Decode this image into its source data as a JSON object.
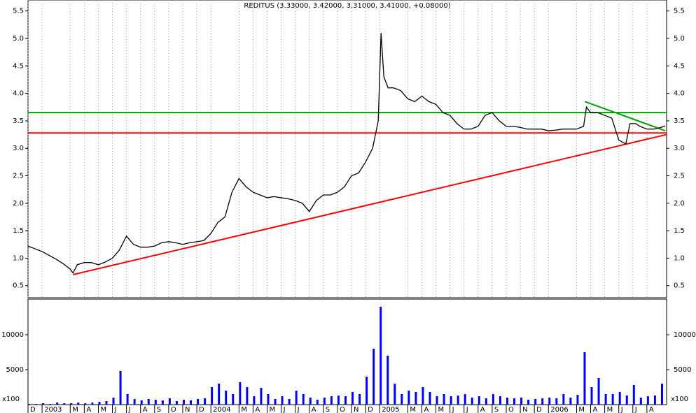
{
  "chart_data": [
    {
      "type": "line",
      "title": "REDITUS (3.33000, 3.42000, 3.31000, 3.41000, +0.08000)",
      "xlim": [
        0,
        45.4
      ],
      "ylim": [
        0.28,
        5.7
      ],
      "yticks": [
        0.5,
        {
          "value": 1,
          "label": "1.0"
        },
        1.5,
        {
          "value": 2,
          "label": "2.0"
        },
        2.5,
        {
          "value": 3,
          "label": "3.0"
        },
        3.5,
        {
          "value": 4,
          "label": "4.0"
        },
        4.5,
        {
          "value": 5,
          "label": "5.0"
        },
        5.5
      ],
      "x": [
        0,
        0.5,
        1,
        1.5,
        2,
        2.5,
        3,
        3.2,
        3.5,
        4,
        4.5,
        5,
        5.5,
        6,
        6.5,
        7,
        7.5,
        8,
        8.5,
        9,
        9.5,
        10,
        10.5,
        11,
        11.5,
        12,
        12.5,
        13,
        13.5,
        14,
        14.5,
        15,
        15.5,
        16,
        16.5,
        17,
        17.5,
        18,
        18.5,
        19,
        19.5,
        20,
        20.5,
        21,
        21.5,
        22,
        22.5,
        23,
        23.5,
        24,
        24.5,
        24.9,
        25.1,
        25.3,
        25.6,
        26,
        26.5,
        27,
        27.5,
        28,
        28.5,
        29,
        29.5,
        30,
        30.5,
        31,
        31.5,
        32,
        32.5,
        33,
        33.5,
        34,
        34.5,
        35,
        35.5,
        36,
        36.5,
        37,
        37.5,
        38,
        38.5,
        39,
        39.5,
        39.7,
        40,
        40.5,
        41,
        41.5,
        42,
        42.5,
        42.8,
        43.2,
        43.5,
        44,
        44.5,
        45,
        45.3
      ],
      "series": [
        {
          "color": "#000000",
          "values": [
            1.22,
            1.17,
            1.12,
            1.05,
            0.98,
            0.9,
            0.8,
            0.73,
            0.88,
            0.92,
            0.92,
            0.88,
            0.93,
            1.0,
            1.15,
            1.4,
            1.25,
            1.2,
            1.2,
            1.22,
            1.28,
            1.3,
            1.28,
            1.25,
            1.28,
            1.3,
            1.32,
            1.45,
            1.65,
            1.75,
            2.2,
            2.45,
            2.3,
            2.2,
            2.15,
            2.1,
            2.12,
            2.1,
            2.08,
            2.05,
            2.0,
            1.85,
            2.05,
            2.15,
            2.15,
            2.2,
            2.3,
            2.5,
            2.55,
            2.75,
            3.0,
            3.5,
            5.1,
            4.3,
            4.1,
            4.1,
            4.05,
            3.9,
            3.85,
            3.95,
            3.85,
            3.8,
            3.65,
            3.6,
            3.45,
            3.35,
            3.35,
            3.4,
            3.6,
            3.65,
            3.5,
            3.4,
            3.4,
            3.38,
            3.35,
            3.35,
            3.35,
            3.32,
            3.33,
            3.35,
            3.35,
            3.35,
            3.4,
            3.75,
            3.65,
            3.65,
            3.6,
            3.55,
            3.15,
            3.08,
            3.45,
            3.45,
            3.4,
            3.35,
            3.35,
            3.38,
            3.41
          ]
        }
      ],
      "trendlines": [
        {
          "color": "#ff0000",
          "x": [
            0,
            45.4
          ],
          "values": [
            3.28,
            3.28
          ]
        },
        {
          "color": "#00a000",
          "x": [
            0,
            45.4
          ],
          "values": [
            3.65,
            3.65
          ]
        },
        {
          "color": "#ff0000",
          "x": [
            3.2,
            45.4
          ],
          "values": [
            0.7,
            3.25
          ]
        },
        {
          "color": "#00a000",
          "x": [
            39.6,
            45.3
          ],
          "values": [
            3.85,
            3.32
          ]
        }
      ]
    },
    {
      "type": "bar",
      "xlim": [
        0,
        45.4
      ],
      "ylim": [
        0,
        15000
      ],
      "yticks": [
        5000,
        10000
      ],
      "unit_label": "x100",
      "color": "#0000ff",
      "xticks": [
        {
          "value": 0,
          "label": "D"
        },
        {
          "value": 1,
          "label": "2003"
        },
        {
          "value": 3,
          "label": "M"
        },
        {
          "value": 4,
          "label": "A"
        },
        {
          "value": 5,
          "label": "M"
        },
        {
          "value": 6,
          "label": "J"
        },
        {
          "value": 7,
          "label": "J"
        },
        {
          "value": 8,
          "label": "A"
        },
        {
          "value": 9,
          "label": "S"
        },
        {
          "value": 10,
          "label": "O"
        },
        {
          "value": 11,
          "label": "N"
        },
        {
          "value": 12,
          "label": "D"
        },
        {
          "value": 13,
          "label": "2004"
        },
        {
          "value": 15,
          "label": "M"
        },
        {
          "value": 16,
          "label": "A"
        },
        {
          "value": 17,
          "label": "M"
        },
        {
          "value": 18,
          "label": "J"
        },
        {
          "value": 19,
          "label": "J"
        },
        {
          "value": 20,
          "label": "A"
        },
        {
          "value": 21,
          "label": "S"
        },
        {
          "value": 22,
          "label": "O"
        },
        {
          "value": 23,
          "label": "N"
        },
        {
          "value": 24,
          "label": "D"
        },
        {
          "value": 25,
          "label": "2005"
        },
        {
          "value": 27,
          "label": "M"
        },
        {
          "value": 28,
          "label": "A"
        },
        {
          "value": 29,
          "label": "M"
        },
        {
          "value": 30,
          "label": "J"
        },
        {
          "value": 31,
          "label": "J"
        },
        {
          "value": 32,
          "label": "A"
        },
        {
          "value": 33,
          "label": "S"
        },
        {
          "value": 34,
          "label": "O"
        },
        {
          "value": 35,
          "label": "N"
        },
        {
          "value": 36,
          "label": "D"
        },
        {
          "value": 37,
          "label": "2006"
        },
        {
          "value": 39,
          "label": "M"
        },
        {
          "value": 40,
          "label": "A"
        },
        {
          "value": 41,
          "label": "M"
        },
        {
          "value": 42,
          "label": "J"
        },
        {
          "value": 43,
          "label": "J"
        },
        {
          "value": 44,
          "label": "A"
        }
      ],
      "x": [
        0,
        0.5,
        1,
        1.5,
        2,
        2.5,
        3,
        3.5,
        4,
        4.5,
        5,
        5.5,
        6,
        6.5,
        7,
        7.5,
        8,
        8.5,
        9,
        9.5,
        10,
        10.5,
        11,
        11.5,
        12,
        12.5,
        13,
        13.5,
        14,
        14.5,
        15,
        15.5,
        16,
        16.5,
        17,
        17.5,
        18,
        18.5,
        19,
        19.5,
        20,
        20.5,
        21,
        21.5,
        22,
        22.5,
        23,
        23.5,
        24,
        24.5,
        25,
        25.5,
        26,
        26.5,
        27,
        27.5,
        28,
        28.5,
        29,
        29.5,
        30,
        30.5,
        31,
        31.5,
        32,
        32.5,
        33,
        33.5,
        34,
        34.5,
        35,
        35.5,
        36,
        36.5,
        37,
        37.5,
        38,
        38.5,
        39,
        39.5,
        40,
        40.5,
        41,
        41.5,
        42,
        42.5,
        43,
        43.5,
        44,
        44.5,
        45
      ],
      "values": [
        100,
        100,
        200,
        100,
        300,
        200,
        200,
        300,
        200,
        300,
        400,
        500,
        1000,
        4800,
        1500,
        800,
        600,
        800,
        700,
        600,
        900,
        500,
        700,
        600,
        800,
        900,
        2500,
        3000,
        2000,
        1500,
        3200,
        2500,
        1200,
        2400,
        1500,
        800,
        1200,
        800,
        2000,
        1500,
        1000,
        700,
        1000,
        1200,
        1300,
        1200,
        1800,
        1500,
        4000,
        8000,
        14000,
        7000,
        3000,
        1500,
        2000,
        1800,
        2500,
        1800,
        1200,
        1500,
        1200,
        1300,
        1500,
        1000,
        1200,
        900,
        1500,
        1200,
        1000,
        900,
        1000,
        700,
        800,
        900,
        1000,
        900,
        1500,
        1000,
        1400,
        7500,
        2500,
        3800,
        1500,
        1500,
        1800,
        1300,
        2800,
        1000,
        1200,
        1300,
        3000
      ]
    }
  ]
}
